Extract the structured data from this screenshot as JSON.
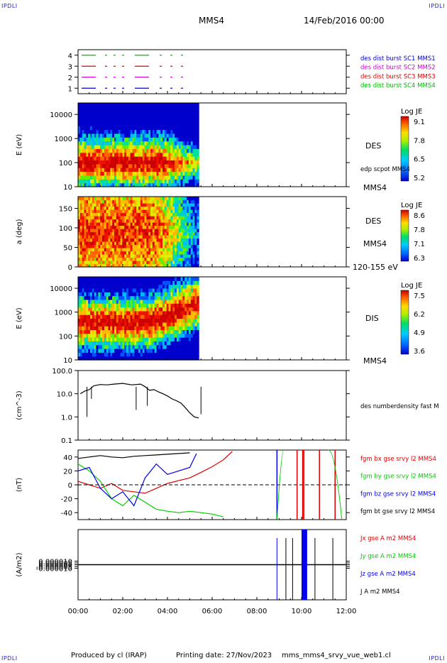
{
  "header": {
    "corner_tl": "IPDLI",
    "corner_tr": "IPDLI",
    "corner_bl": "IPDLI",
    "corner_br": "IPDLI",
    "spacecraft": "MMS4",
    "date": "14/Feb/2016 00:00"
  },
  "footer": {
    "produced_by": "Produced by cl (IRAP)",
    "printing_date": "Printing date: 27/Nov/2023",
    "script": "mms_mms4_srvy_vue_web1.cl"
  },
  "colors": {
    "mms1": "#0000cc",
    "mms2": "#cc00cc",
    "mms3": "#dd0000",
    "mms4": "#00bb00",
    "bx": "#dd0000",
    "by": "#00cc00",
    "bz": "#0000ee",
    "bt": "#000000"
  },
  "chart_data": [
    {
      "type": "line",
      "id": "burst_availability",
      "ylim": [
        0.5,
        4.5
      ],
      "y_ticks": [
        "1",
        "2",
        "3",
        "4"
      ],
      "legend": [
        {
          "label": "des dist burst SC1 MMS1",
          "color": "#0000cc",
          "row": 1
        },
        {
          "label": "des dist burst SC2 MMS2",
          "color": "#cc00cc",
          "row": 2
        },
        {
          "label": "des dist burst SC3 MMS3",
          "color": "#dd0000",
          "row": 3
        },
        {
          "label": "des dist burst SC4 MMS4",
          "color": "#00bb00",
          "row": 4
        }
      ]
    },
    {
      "type": "heatmap",
      "id": "des_energy",
      "ylabel": "E (eV)",
      "yscale": "log",
      "ylim": [
        10,
        30000
      ],
      "y_ticks": [
        "10",
        "100",
        "1000",
        "10000"
      ],
      "data_end_hour": 5.4,
      "colorbar": {
        "title": "Log JE",
        "ticks": [
          "9.1",
          "7.8",
          "6.5",
          "5.2"
        ],
        "range": [
          5.2,
          9.1
        ]
      },
      "labels": [
        "DES",
        "edp scpot MMS4",
        "MMS4"
      ]
    },
    {
      "type": "heatmap",
      "id": "des_pitch",
      "ylabel": "a (deg)",
      "ylim": [
        0,
        180
      ],
      "y_ticks": [
        "0",
        "50",
        "100",
        "150"
      ],
      "data_end_hour": 5.4,
      "colorbar": {
        "title": "Log JE",
        "ticks": [
          "8.6",
          "7.8",
          "7.1",
          "6.3"
        ],
        "range": [
          6.3,
          8.6
        ]
      },
      "labels": [
        "DES",
        "MMS4",
        "120-155 eV"
      ]
    },
    {
      "type": "heatmap",
      "id": "dis_energy",
      "ylabel": "E (eV)",
      "yscale": "log",
      "ylim": [
        10,
        30000
      ],
      "y_ticks": [
        "10",
        "100",
        "1000",
        "10000"
      ],
      "data_end_hour": 5.4,
      "colorbar": {
        "title": "Log JE",
        "ticks": [
          "7.5",
          "6.2",
          "4.9",
          "3.6"
        ],
        "range": [
          3.6,
          7.5
        ]
      },
      "labels": [
        "DIS",
        "MMS4"
      ]
    },
    {
      "type": "line",
      "id": "density",
      "ylabel": "(cm^-3)",
      "yscale": "log",
      "ylim": [
        0.1,
        100
      ],
      "y_ticks": [
        "0.1",
        "1.0",
        "10.0",
        "100.0"
      ],
      "legend": [
        {
          "label": "des numberdensity fast M",
          "color": "#000000"
        }
      ],
      "series": [
        {
          "name": "des numberdensity fast M",
          "color": "#000000",
          "x": [
            0.1,
            0.3,
            0.5,
            0.7,
            1.0,
            1.3,
            1.6,
            2.0,
            2.4,
            2.8,
            3.0,
            3.2,
            3.4,
            3.6,
            3.8,
            4.0,
            4.2,
            4.4,
            4.6,
            4.8,
            5.0,
            5.2,
            5.4
          ],
          "y": [
            10,
            13,
            15,
            22,
            25,
            24,
            26,
            28,
            24,
            26,
            20,
            14,
            15,
            12,
            10,
            8,
            6,
            5,
            4,
            2.5,
            1.5,
            1.0,
            0.9
          ]
        }
      ]
    },
    {
      "type": "line",
      "id": "magnetic_field",
      "ylabel": "(nT)",
      "ylim": [
        -50,
        50
      ],
      "y_ticks": [
        "-40",
        "-20",
        "0",
        "20",
        "40"
      ],
      "legend": [
        {
          "label": "fgm bx gse srvy l2 MMS4",
          "color": "#dd0000"
        },
        {
          "label": "fgm by gse srvy l2 MMS4",
          "color": "#00cc00"
        },
        {
          "label": "fgm bz gse srvy l2 MMS4",
          "color": "#0000ee"
        },
        {
          "label": "fgm bt gse srvy l2 MMS4",
          "color": "#000000"
        }
      ],
      "series": [
        {
          "name": "fgm bx gse srvy l2 MMS4",
          "color": "#dd0000",
          "x": [
            0,
            0.5,
            1.0,
            1.5,
            2.0,
            2.5,
            3.0,
            3.5,
            4.0,
            4.5,
            5.0,
            5.5,
            6.0,
            6.5,
            6.9
          ],
          "y": [
            5,
            0,
            -5,
            2,
            -8,
            -10,
            -12,
            -5,
            2,
            6,
            10,
            18,
            26,
            36,
            48
          ]
        },
        {
          "name": "fgm by gse srvy l2 MMS4",
          "color": "#00cc00",
          "x": [
            0,
            0.5,
            1.0,
            1.5,
            2.0,
            2.5,
            3.0,
            3.5,
            4.0,
            4.5,
            5.0,
            5.5,
            6.0,
            6.5
          ],
          "y": [
            30,
            20,
            5,
            -20,
            -30,
            -15,
            -25,
            -35,
            -38,
            -40,
            -38,
            -40,
            -42,
            -46
          ]
        },
        {
          "name": "fgm bz gse srvy l2 MMS4",
          "color": "#0000ee",
          "x": [
            0,
            0.5,
            1.0,
            1.5,
            2.0,
            2.5,
            3.0,
            3.5,
            4.0,
            4.5,
            5.0,
            5.3
          ],
          "y": [
            20,
            25,
            -5,
            -20,
            -10,
            -30,
            10,
            30,
            15,
            20,
            25,
            45
          ]
        },
        {
          "name": "fgm bt gse srvy l2 MMS4",
          "color": "#000000",
          "x": [
            0,
            0.5,
            1.0,
            1.5,
            2.0,
            2.5,
            3.0,
            3.5,
            4.0,
            4.5,
            5.0
          ],
          "y": [
            38,
            40,
            42,
            40,
            39,
            41,
            42,
            43,
            44,
            45,
            46
          ]
        }
      ]
    },
    {
      "type": "line",
      "id": "current_density",
      "ylabel": "(A/m2)",
      "ylim": [
        -0.0001,
        0.0001
      ],
      "y_ticks": [
        "-0.000010",
        "-0.000005",
        "0.000000",
        "0.000005",
        "0.000010"
      ],
      "legend": [
        {
          "label": "Jx gse A m2 MMS4",
          "color": "#dd0000"
        },
        {
          "label": "Jy gse A m2 MMS4",
          "color": "#00cc00"
        },
        {
          "label": "Jz gse A m2 MMS4",
          "color": "#0000ee"
        },
        {
          "label": "J A m2 MMS4",
          "color": "#000000"
        }
      ]
    }
  ],
  "time_axis": {
    "range_hours": [
      0,
      12
    ],
    "tick_labels": [
      "00:00",
      "02:00",
      "04:00",
      "06:00",
      "08:00",
      "10:00",
      "12:00"
    ]
  }
}
